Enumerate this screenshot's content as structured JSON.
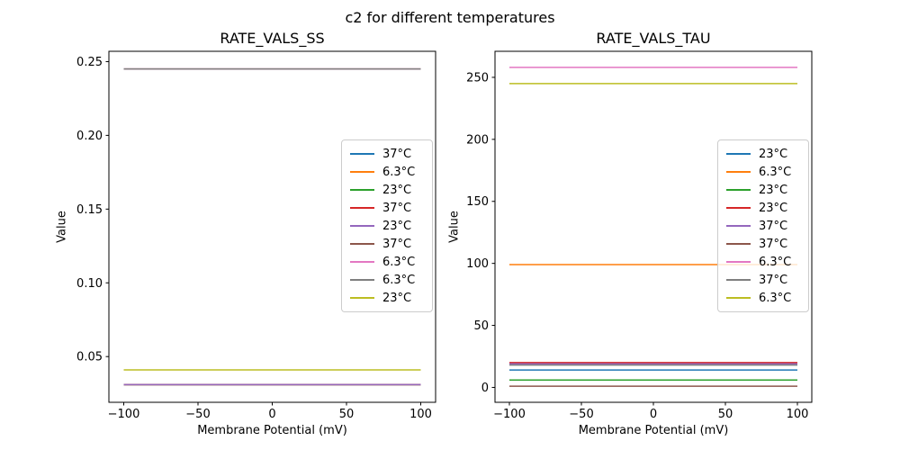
{
  "figure": {
    "title": "c2 for different temperatures",
    "background_color": "#ffffff",
    "text_color": "#000000",
    "legend_border_color": "#cccccc"
  },
  "chart_data": [
    {
      "type": "line",
      "title": "RATE_VALS_SS",
      "xlabel": "Membrane Potential (mV)",
      "ylabel": "Value",
      "xlim": [
        -110,
        110
      ],
      "ylim": [
        0.019,
        0.257
      ],
      "x_range": [
        -100,
        100
      ],
      "grid": false,
      "legend_loc": "center right",
      "xticks": [
        {
          "value": -100,
          "label": "−100"
        },
        {
          "value": -50,
          "label": "−50"
        },
        {
          "value": 0,
          "label": "0"
        },
        {
          "value": 50,
          "label": "50"
        },
        {
          "value": 100,
          "label": "100"
        }
      ],
      "yticks": [
        {
          "value": 0.05,
          "label": "0.05"
        },
        {
          "value": 0.1,
          "label": "0.10"
        },
        {
          "value": 0.15,
          "label": "0.15"
        },
        {
          "value": 0.2,
          "label": "0.20"
        },
        {
          "value": 0.25,
          "label": "0.25"
        }
      ],
      "series": [
        {
          "name": "37°C",
          "color": "#1f77b4",
          "value": 0.031
        },
        {
          "name": "6.3°C",
          "color": "#ff7f0e",
          "value": 0.031
        },
        {
          "name": "23°C",
          "color": "#2ca02c",
          "value": 0.031
        },
        {
          "name": "37°C",
          "color": "#d62728",
          "value": 0.031
        },
        {
          "name": "23°C",
          "color": "#9467bd",
          "value": 0.031
        },
        {
          "name": "37°C",
          "color": "#8c564b",
          "value": 0.245
        },
        {
          "name": "6.3°C",
          "color": "#e377c2",
          "value": 0.245
        },
        {
          "name": "6.3°C",
          "color": "#7f7f7f",
          "value": 0.245
        },
        {
          "name": "23°C",
          "color": "#bcbd22",
          "value": 0.041
        }
      ]
    },
    {
      "type": "line",
      "title": "RATE_VALS_TAU",
      "xlabel": "Membrane Potential (mV)",
      "ylabel": "Value",
      "xlim": [
        -110,
        110
      ],
      "ylim": [
        -12,
        271
      ],
      "x_range": [
        -100,
        100
      ],
      "grid": false,
      "legend_loc": "center right",
      "xticks": [
        {
          "value": -100,
          "label": "−100"
        },
        {
          "value": -50,
          "label": "−50"
        },
        {
          "value": 0,
          "label": "0"
        },
        {
          "value": 50,
          "label": "50"
        },
        {
          "value": 100,
          "label": "100"
        }
      ],
      "yticks": [
        {
          "value": 0,
          "label": "0"
        },
        {
          "value": 50,
          "label": "50"
        },
        {
          "value": 100,
          "label": "100"
        },
        {
          "value": 150,
          "label": "150"
        },
        {
          "value": 200,
          "label": "200"
        },
        {
          "value": 250,
          "label": "250"
        }
      ],
      "series": [
        {
          "name": "23°C",
          "color": "#1f77b4",
          "value": 14
        },
        {
          "name": "6.3°C",
          "color": "#ff7f0e",
          "value": 99
        },
        {
          "name": "23°C",
          "color": "#2ca02c",
          "value": 6
        },
        {
          "name": "23°C",
          "color": "#d62728",
          "value": 20
        },
        {
          "name": "37°C",
          "color": "#9467bd",
          "value": 19
        },
        {
          "name": "37°C",
          "color": "#8c564b",
          "value": 1
        },
        {
          "name": "6.3°C",
          "color": "#e377c2",
          "value": 258
        },
        {
          "name": "37°C",
          "color": "#7f7f7f",
          "value": 18
        },
        {
          "name": "6.3°C",
          "color": "#bcbd22",
          "value": 245
        }
      ]
    }
  ]
}
